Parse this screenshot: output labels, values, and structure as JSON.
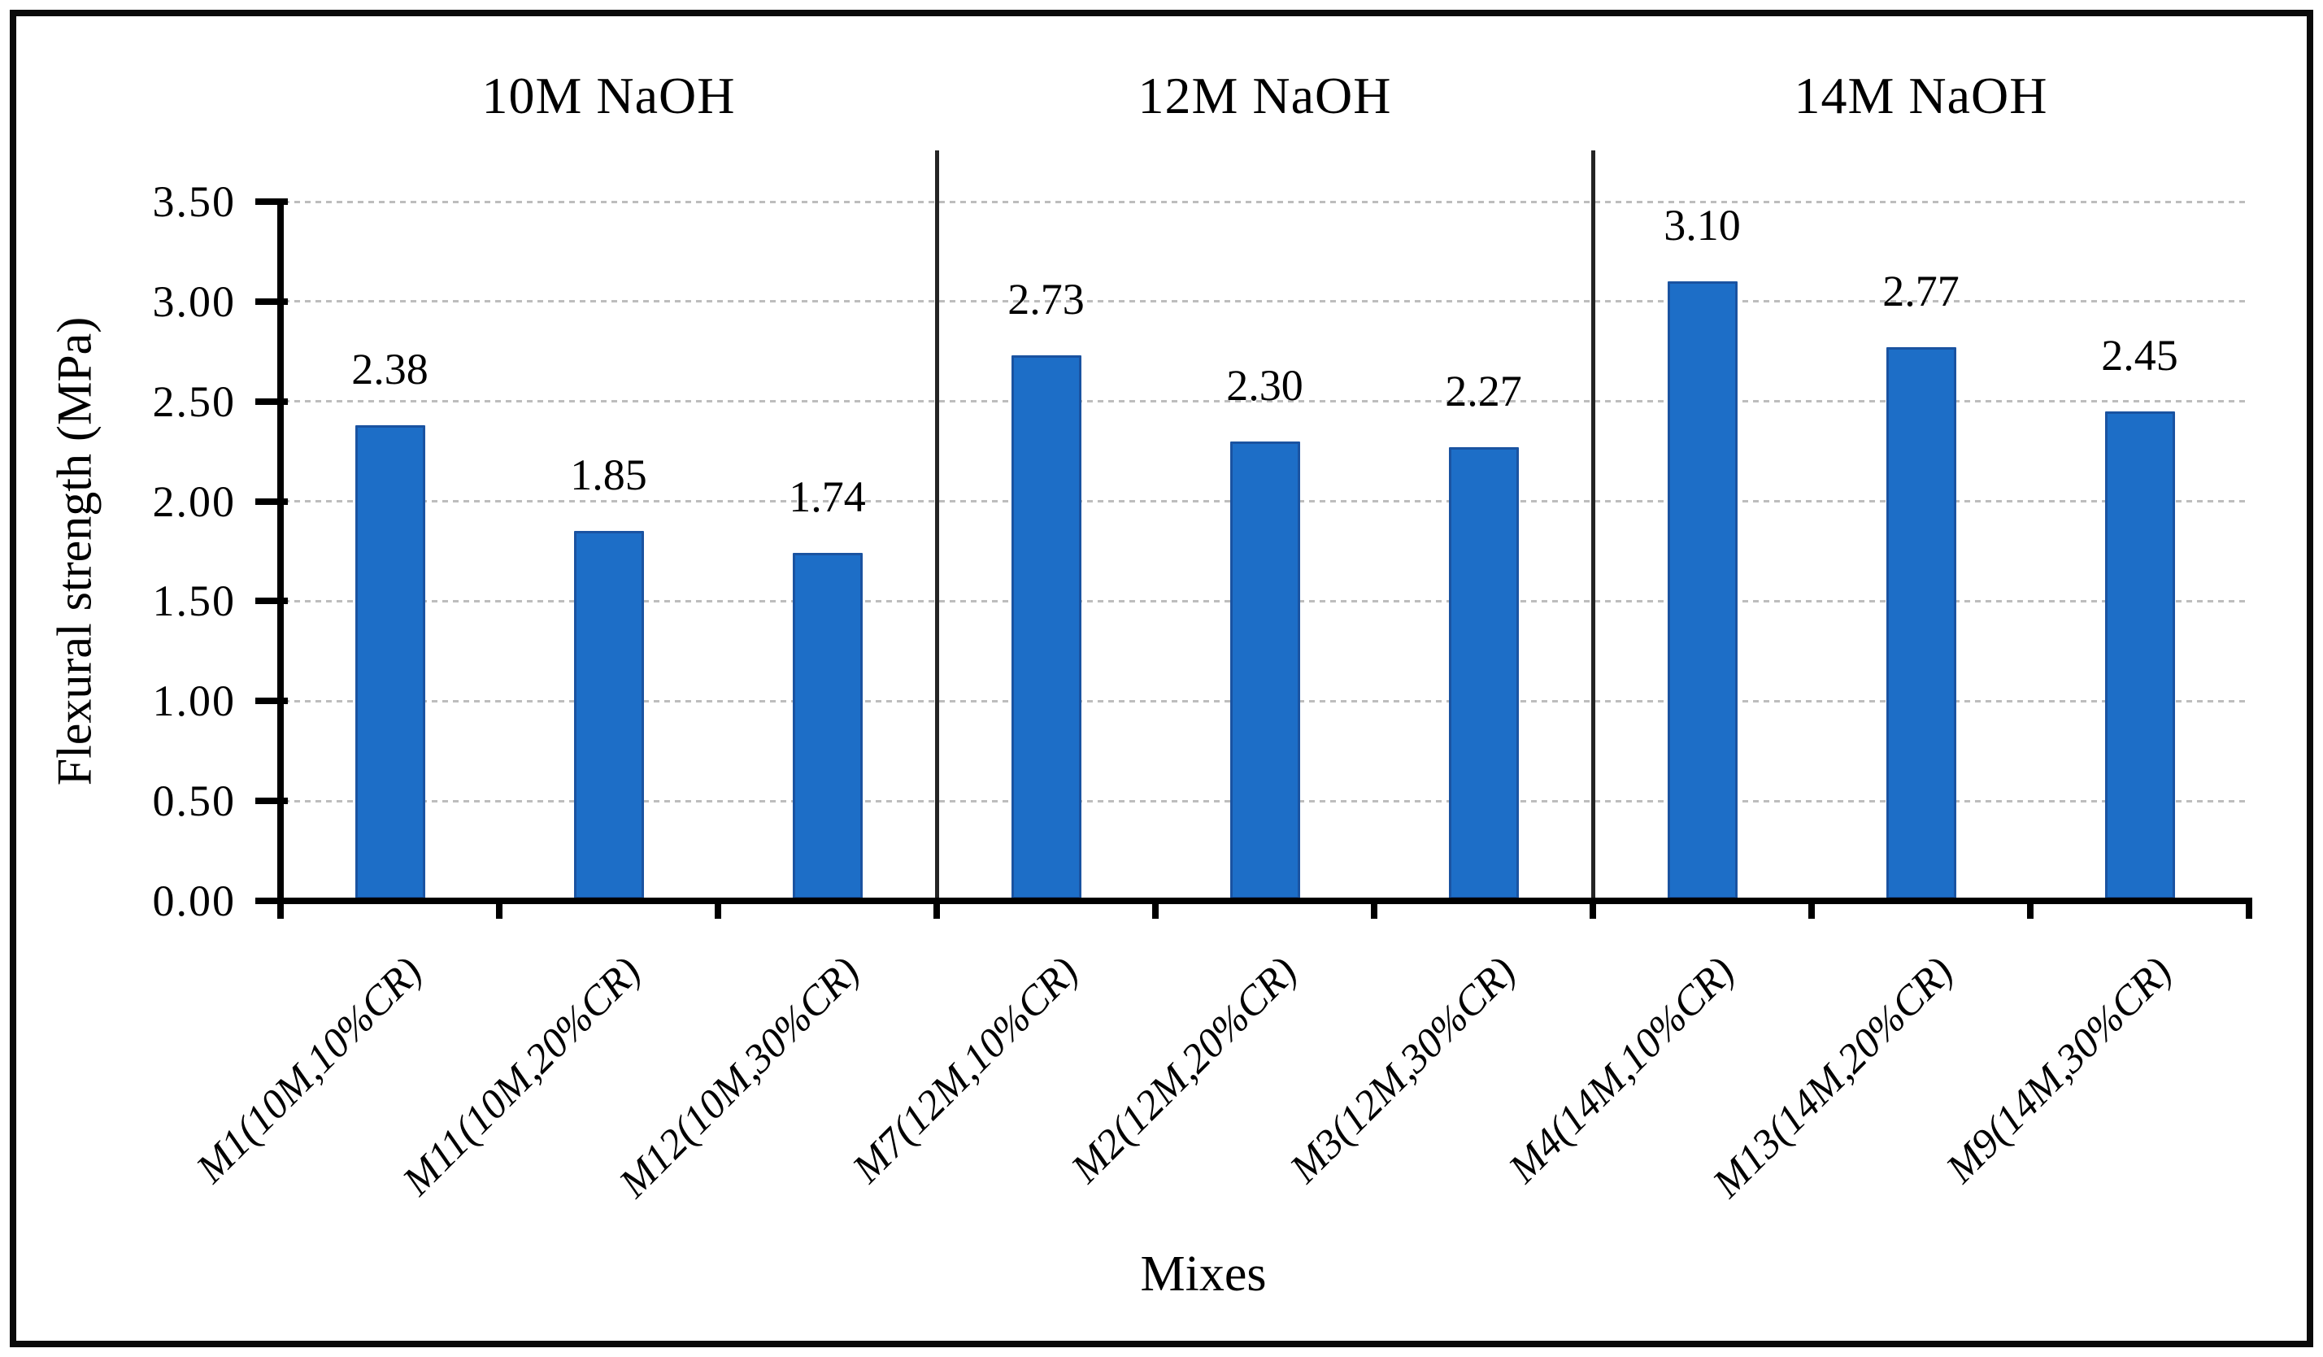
{
  "chart_data": {
    "type": "bar",
    "title": "",
    "xlabel": "Mixes",
    "ylabel": "Flexural strength (MPa)",
    "ylim": [
      0,
      3.5
    ],
    "ytick_step": 0.5,
    "ytick_labels": [
      "0.00",
      "0.50",
      "1.00",
      "1.50",
      "2.00",
      "2.50",
      "3.00",
      "3.50"
    ],
    "grid": "horizontal-dashed",
    "legend_position": "none",
    "categories": [
      "M1(10M,10%CR)",
      "M11(10M,20%CR)",
      "M12(10M,30%CR)",
      "M7(12M,10%CR)",
      "M2(12M,20%CR)",
      "M3(12M,30%CR)",
      "M4(14M,10%CR)",
      "M13(14M,20%CR)",
      "M9(14M,30%CR)"
    ],
    "values": [
      2.38,
      1.85,
      1.74,
      2.73,
      2.3,
      2.27,
      3.1,
      2.77,
      2.45
    ],
    "data_labels": [
      "2.38",
      "1.85",
      "1.74",
      "2.73",
      "2.30",
      "2.27",
      "3.10",
      "2.77",
      "2.45"
    ],
    "groups": [
      {
        "label": "10M NaOH",
        "span": [
          0,
          2
        ]
      },
      {
        "label": "12M NaOH",
        "span": [
          3,
          5
        ]
      },
      {
        "label": "14M NaOH",
        "span": [
          6,
          8
        ]
      }
    ],
    "colors": {
      "bar_fill": "#1D6EC7",
      "bar_border": "#1A53A1",
      "gridline": "#BDBDBD",
      "axis": "#000000",
      "separator": "#242424",
      "frame_border": "#0A0A0A",
      "background": "#FFFFFF",
      "text": "#000000"
    }
  }
}
